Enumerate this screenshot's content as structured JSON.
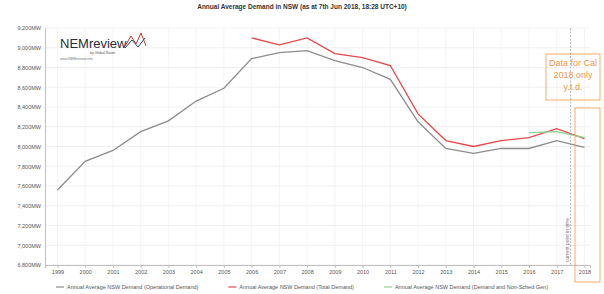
{
  "chart_data": {
    "type": "line",
    "title": "Annual Average Demand in NSW (as at 7th Jun 2018, 18:28 UTC+10)",
    "x": [
      1999,
      2000,
      2001,
      2002,
      2003,
      2004,
      2005,
      2006,
      2007,
      2008,
      2009,
      2010,
      2011,
      2012,
      2013,
      2014,
      2015,
      2016,
      2017,
      2018
    ],
    "series": [
      {
        "name": "Annual Average NSW Demand (Operational Demand)",
        "color": "#8c8c8c",
        "values": [
          7560,
          7850,
          7960,
          8150,
          8260,
          8460,
          8590,
          8890,
          8950,
          8970,
          8870,
          8800,
          8680,
          8250,
          7980,
          7930,
          7980,
          7980,
          8060,
          7990
        ]
      },
      {
        "name": "Annual Average NSW Demand (Total Demand)",
        "color": "#e8474a",
        "values": [
          null,
          null,
          null,
          null,
          null,
          null,
          null,
          9100,
          9030,
          9100,
          8940,
          8900,
          8820,
          8330,
          8060,
          8000,
          8060,
          8090,
          8180,
          8080
        ]
      },
      {
        "name": "Annual Average NSW Demand (Demand and Non-Sched Gen)",
        "color": "#8fd18f",
        "values": [
          null,
          null,
          null,
          null,
          null,
          null,
          null,
          null,
          null,
          null,
          null,
          null,
          null,
          null,
          null,
          null,
          null,
          8140,
          8150,
          8090
        ]
      }
    ],
    "xlim": [
      1998.55,
      2018.2
    ],
    "xticks": [
      1999,
      2000,
      2001,
      2002,
      2003,
      2004,
      2005,
      2006,
      2007,
      2008,
      2009,
      2010,
      2011,
      2012,
      2013,
      2014,
      2015,
      2016,
      2017,
      2018
    ],
    "ylim": [
      6800,
      9200
    ],
    "yticks": [
      {
        "value": 6800,
        "label": "6,800MW"
      },
      {
        "value": 7000,
        "label": "7,000MW"
      },
      {
        "value": 7200,
        "label": "7,200MW"
      },
      {
        "value": 7400,
        "label": "7,400MW"
      },
      {
        "value": 7600,
        "label": "7,600MW"
      },
      {
        "value": 7800,
        "label": "7,800MW"
      },
      {
        "value": 8000,
        "label": "8,000MW"
      },
      {
        "value": 8200,
        "label": "8,200MW"
      },
      {
        "value": 8400,
        "label": "8,400MW"
      },
      {
        "value": 8600,
        "label": "8,600MW"
      },
      {
        "value": 8800,
        "label": "8,800MW"
      },
      {
        "value": 9000,
        "label": "9,000MW"
      },
      {
        "value": 9200,
        "label": "9,200MW"
      }
    ],
    "grid": true,
    "legend": "bottom",
    "annotations": [
      {
        "text": "current point in time",
        "x": 2017.5
      },
      {
        "text": "Data for Cal\n2018 only\ny.t.d."
      }
    ],
    "logo": {
      "title": "NEMreview",
      "subtitle": "by Global-Roam",
      "url": "www.NEMreview.info"
    }
  }
}
